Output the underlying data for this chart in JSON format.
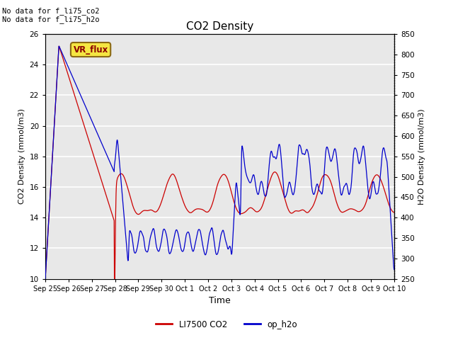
{
  "title": "CO2 Density",
  "xlabel": "Time",
  "ylabel_left": "CO2 Density (mmol/m3)",
  "ylabel_right": "H2O Density (mmol/m3)",
  "ylim_left": [
    10,
    26
  ],
  "ylim_right": [
    250,
    850
  ],
  "annotation_text": "No data for f_li75_co2\nNo data for f_li75_h2o",
  "box_label": "VR_flux",
  "legend_labels": [
    "LI7500 CO2",
    "op_h2o"
  ],
  "co2_color": "#cc0000",
  "h2o_color": "#0000cc",
  "background_color": "#e8e8e8",
  "grid_color": "#ffffff",
  "xtick_labels": [
    "Sep 25",
    "Sep 26",
    "Sep 27",
    "Sep 28",
    "Sep 29",
    "Sep 30",
    "Oct 1",
    "Oct 2",
    "Oct 3",
    "Oct 4",
    "Oct 5",
    "Oct 6",
    "Oct 7",
    "Oct 8",
    "Oct 9",
    "Oct 10"
  ],
  "xtick_positions": [
    0,
    1,
    2,
    3,
    4,
    5,
    6,
    7,
    8,
    9,
    10,
    11,
    12,
    13,
    14,
    15
  ],
  "left_yticks": [
    10,
    12,
    14,
    16,
    18,
    20,
    22,
    24,
    26
  ],
  "right_yticks": [
    250,
    300,
    350,
    400,
    450,
    500,
    550,
    600,
    650,
    700,
    750,
    800,
    850
  ]
}
